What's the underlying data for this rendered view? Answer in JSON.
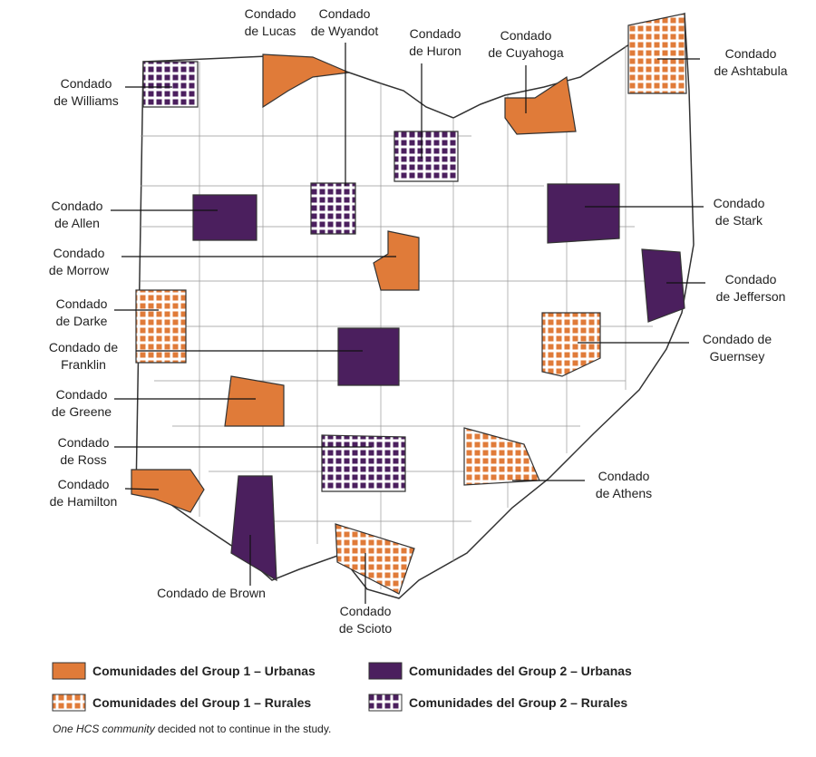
{
  "counties": [
    {
      "label": [
        "Condado",
        "de Lucas"
      ],
      "color": "#e07b39",
      "pattern": "solid"
    },
    {
      "label": [
        "Condado",
        "de Wyandot"
      ],
      "color": "#4b1f5e",
      "pattern": "grid"
    },
    {
      "label": [
        "Condado",
        "de Huron"
      ],
      "color": "#4b1f5e",
      "pattern": "grid"
    },
    {
      "label": [
        "Condado",
        "de Cuyahoga"
      ],
      "color": "#e07b39",
      "pattern": "solid"
    },
    {
      "label": [
        "Condado",
        "de Ashtabula"
      ],
      "color": "#e07b39",
      "pattern": "grid"
    },
    {
      "label": [
        "Condado",
        "de Williams"
      ],
      "color": "#4b1f5e",
      "pattern": "grid"
    },
    {
      "label": [
        "Condado",
        "de Allen"
      ],
      "color": "#4b1f5e",
      "pattern": "solid"
    },
    {
      "label": [
        "Condado",
        "de Morrow"
      ],
      "color": "#e07b39",
      "pattern": "solid"
    },
    {
      "label": [
        "Condado",
        "de Darke"
      ],
      "color": "#e07b39",
      "pattern": "grid"
    },
    {
      "label": [
        "Condado de",
        "Franklin"
      ],
      "color": "#4b1f5e",
      "pattern": "solid"
    },
    {
      "label": [
        "Condado",
        "de Greene"
      ],
      "color": "#e07b39",
      "pattern": "solid"
    },
    {
      "label": [
        "Condado",
        "de Ross"
      ],
      "color": "#4b1f5e",
      "pattern": "grid"
    },
    {
      "label": [
        "Condado",
        "de Hamilton"
      ],
      "color": "#e07b39",
      "pattern": "solid"
    },
    {
      "label": [
        "Condado de Brown"
      ],
      "color": "#4b1f5e",
      "pattern": "solid"
    },
    {
      "label": [
        "Condado",
        "de Scioto"
      ],
      "color": "#e07b39",
      "pattern": "grid"
    },
    {
      "label": [
        "Condado",
        "de Athens"
      ],
      "color": "#e07b39",
      "pattern": "grid"
    },
    {
      "label": [
        "Condado de",
        "Guernsey"
      ],
      "color": "#e07b39",
      "pattern": "grid"
    },
    {
      "label": [
        "Condado",
        "de Jefferson"
      ],
      "color": "#4b1f5e",
      "pattern": "solid"
    },
    {
      "label": [
        "Condado",
        "de Stark"
      ],
      "color": "#4b1f5e",
      "pattern": "solid"
    }
  ],
  "legend": [
    {
      "label": "Comunidades del Group 1 – Urbanas",
      "color": "#e07b39",
      "pattern": "solid"
    },
    {
      "label": "Comunidades del Group 2 – Urbanas",
      "color": "#4b1f5e",
      "pattern": "solid"
    },
    {
      "label": "Comunidades del Group 1 – Rurales",
      "color": "#e07b39",
      "pattern": "grid"
    },
    {
      "label": "Comunidades del Group 2 – Rurales",
      "color": "#4b1f5e",
      "pattern": "grid"
    }
  ],
  "note": [
    "One HCS community",
    " decided not to continue in the study."
  ]
}
